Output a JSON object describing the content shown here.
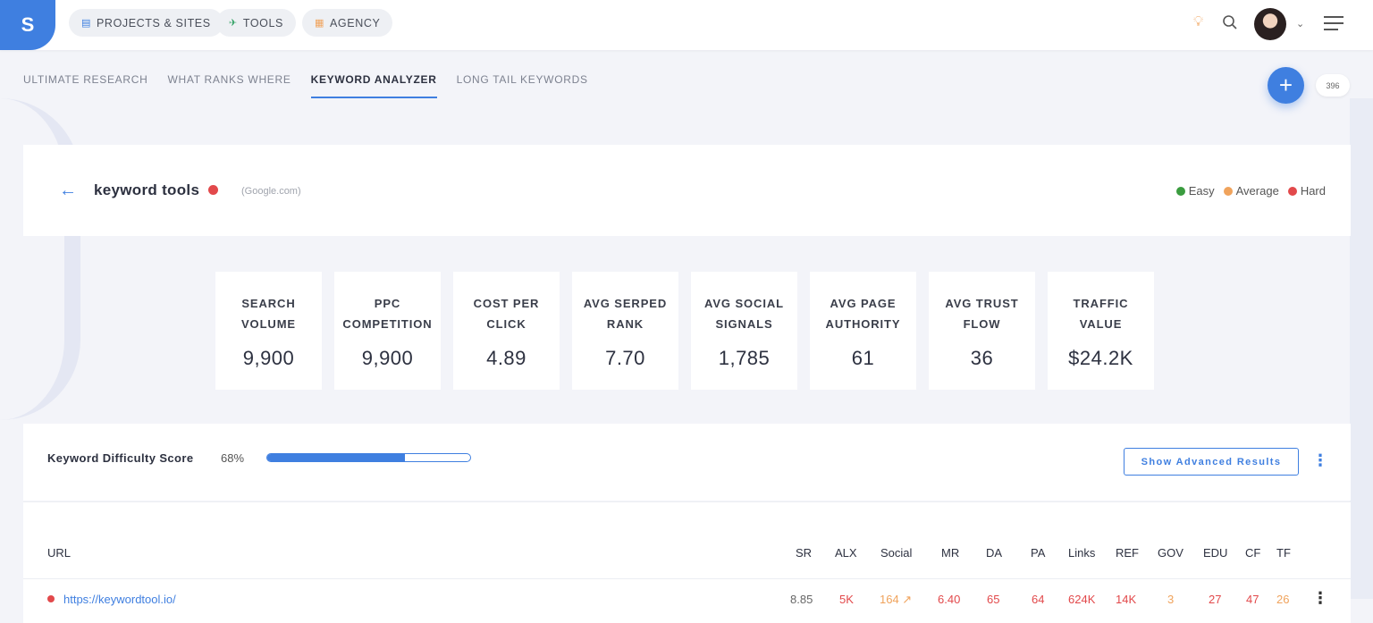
{
  "topbar": {
    "logo": "S",
    "nav": [
      {
        "label": "PROJECTS & SITES",
        "icon": "briefcase-icon",
        "glyph": "▤"
      },
      {
        "label": "TOOLS",
        "icon": "rocket-icon",
        "glyph": "✈"
      },
      {
        "label": "AGENCY",
        "icon": "building-icon",
        "glyph": "▦"
      }
    ]
  },
  "tabs": [
    {
      "label": "ULTIMATE RESEARCH",
      "active": false
    },
    {
      "label": "WHAT RANKS WHERE",
      "active": false
    },
    {
      "label": "KEYWORD ANALYZER",
      "active": true
    },
    {
      "label": "LONG TAIL KEYWORDS",
      "active": false
    }
  ],
  "fab": {
    "glyph": "+",
    "count": "396"
  },
  "keyword": {
    "title": "keyword tools",
    "engine": "(Google.com)",
    "difficulty_color": "#e2494b",
    "legend": [
      {
        "label": "Easy",
        "color": "#3a9c3f"
      },
      {
        "label": "Average",
        "color": "#f0a35c"
      },
      {
        "label": "Hard",
        "color": "#e2494b"
      }
    ]
  },
  "metrics": [
    {
      "line1": "SEARCH",
      "line2": "VOLUME",
      "value": "9,900"
    },
    {
      "line1": "PPC",
      "line2": "COMPETITION",
      "value": "9,900"
    },
    {
      "line1": "COST PER",
      "line2": "CLICK",
      "value": "4.89"
    },
    {
      "line1": "AVG SERPED",
      "line2": "RANK",
      "value": "7.70"
    },
    {
      "line1": "AVG SOCIAL",
      "line2": "SIGNALS",
      "value": "1,785"
    },
    {
      "line1": "AVG PAGE",
      "line2": "AUTHORITY",
      "value": "61"
    },
    {
      "line1": "AVG TRUST",
      "line2": "FLOW",
      "value": "36"
    },
    {
      "line1": "TRAFFIC",
      "line2": "VALUE",
      "value": "$24.2K"
    }
  ],
  "difficulty": {
    "label": "Keyword Difficulty Score",
    "percent_text": "68%",
    "fill_fraction": 0.68,
    "advanced_button": "Show Advanced Results"
  },
  "table": {
    "columns": [
      "URL",
      "SR",
      "ALX",
      "Social",
      "MR",
      "DA",
      "PA",
      "Links",
      "REF",
      "GOV",
      "EDU",
      "CF",
      "TF"
    ],
    "rows": [
      {
        "url": "https://keywordtool.io/",
        "sr": "8.85",
        "alx": "5K",
        "social": "164 ↗",
        "mr": "6.40",
        "da": "65",
        "pa": "64",
        "links": "624K",
        "ref": "14K",
        "gov": "3",
        "edu": "27",
        "cf": "47",
        "tf": "26"
      }
    ]
  }
}
